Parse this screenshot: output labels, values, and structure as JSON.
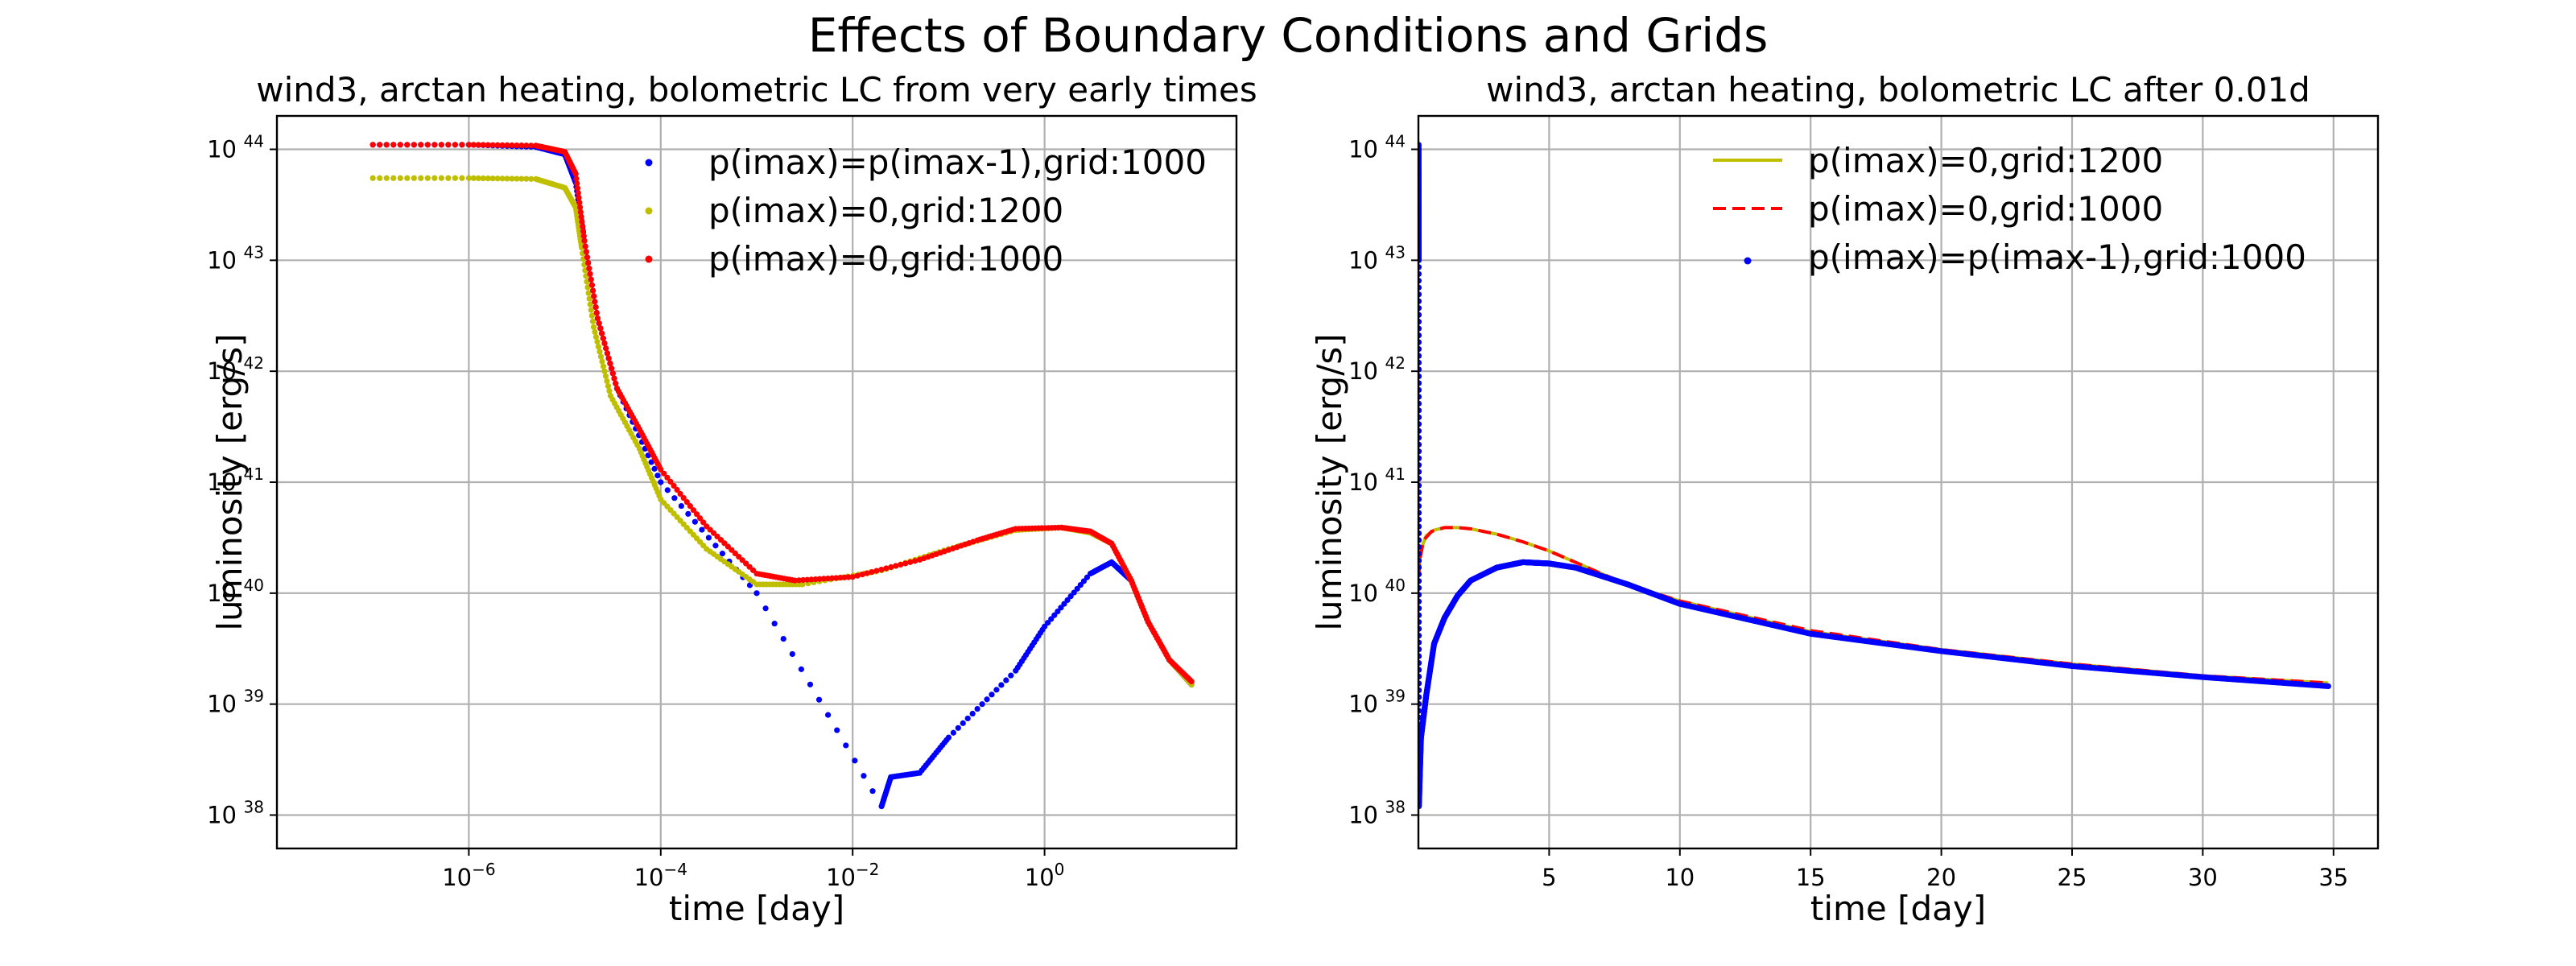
{
  "figure": {
    "title": "Effects of Boundary Conditions and Grids"
  },
  "colors": {
    "blue": "#0000ff",
    "yellow": "#bfbf00",
    "red": "#ff0000",
    "grid": "#b0b0b0"
  },
  "chart_data": [
    {
      "type": "scatter",
      "title": "wind3, arctan heating, bolometric LC from very early times",
      "xlabel": "time [day]",
      "ylabel": "luminosity [erg/s]",
      "xscale": "log",
      "yscale": "log",
      "xlim": [
        1e-08,
        100
      ],
      "ylim": [
        5e+37,
        2e+44
      ],
      "xticks": [
        {
          "value": 1e-06,
          "base": "10",
          "exp": "−6"
        },
        {
          "value": 0.0001,
          "base": "10",
          "exp": "−4"
        },
        {
          "value": 0.01,
          "base": "10",
          "exp": "−2"
        },
        {
          "value": 1,
          "base": "10",
          "exp": "0"
        }
      ],
      "yticks": [
        {
          "value": 1e+38,
          "base": "10",
          "exp": "38"
        },
        {
          "value": 1e+39,
          "base": "10",
          "exp": "39"
        },
        {
          "value": 1e+40,
          "base": "10",
          "exp": "40"
        },
        {
          "value": 1e+41,
          "base": "10",
          "exp": "41"
        },
        {
          "value": 1e+42,
          "base": "10",
          "exp": "42"
        },
        {
          "value": 1e+43,
          "base": "10",
          "exp": "43"
        },
        {
          "value": 1e+44,
          "base": "10",
          "exp": "44"
        }
      ],
      "grid": true,
      "legend_position": "top-right",
      "series": [
        {
          "name": "p(imax)=p(imax-1),grid:1000",
          "color": "blue",
          "marker": "dot",
          "points": [
            [
              1e-07,
              1.1e+44
            ],
            [
              1e-06,
              1.1e+44
            ],
            [
              5e-06,
              1.05e+44
            ],
            [
              1e-05,
              9e+43
            ],
            [
              1.3e-05,
              5e+43
            ],
            [
              1.6e-05,
              1.5e+43
            ],
            [
              2.2e-05,
              3e+42
            ],
            [
              3.5e-05,
              7e+41
            ],
            [
              0.0001,
              1e+41
            ],
            [
              0.001,
              1e+40
            ],
            [
              0.02,
              1.2e+38
            ],
            [
              0.025,
              2.2e+38
            ],
            [
              0.05,
              2.4e+38
            ],
            [
              0.1,
              5e+38
            ],
            [
              0.5,
              2e+39
            ],
            [
              1,
              5e+39
            ],
            [
              3,
              1.5e+40
            ],
            [
              5,
              1.9e+40
            ],
            [
              8,
              1.3e+40
            ],
            [
              12,
              5.5e+39
            ],
            [
              20,
              2.5e+39
            ],
            [
              34,
              1.5e+39
            ]
          ]
        },
        {
          "name": "p(imax)=0,grid:1200",
          "color": "yellow",
          "marker": "dot",
          "points": [
            [
              1e-07,
              5.5e+43
            ],
            [
              1e-06,
              5.5e+43
            ],
            [
              5e-06,
              5.4e+43
            ],
            [
              1e-05,
              4.5e+43
            ],
            [
              1.3e-05,
              3e+43
            ],
            [
              1.5e-05,
              1.3e+43
            ],
            [
              2e-05,
              2.5e+42
            ],
            [
              3e-05,
              6e+41
            ],
            [
              6e-05,
              2e+41
            ],
            [
              0.0001,
              7e+40
            ],
            [
              0.0003,
              2.5e+40
            ],
            [
              0.001,
              1.2e+40
            ],
            [
              0.003,
              1.2e+40
            ],
            [
              0.02,
              1.6e+40
            ],
            [
              0.1,
              2.5e+40
            ],
            [
              0.5,
              3.7e+40
            ],
            [
              1.5,
              3.9e+40
            ],
            [
              3,
              3.5e+40
            ],
            [
              5,
              2.8e+40
            ],
            [
              8,
              1.3e+40
            ],
            [
              12,
              5.5e+39
            ],
            [
              20,
              2.5e+39
            ],
            [
              34,
              1.5e+39
            ]
          ]
        },
        {
          "name": "p(imax)=0,grid:1000",
          "color": "red",
          "marker": "dot",
          "points": [
            [
              1e-07,
              1.1e+44
            ],
            [
              1e-06,
              1.1e+44
            ],
            [
              5e-06,
              1.08e+44
            ],
            [
              1e-05,
              9.5e+43
            ],
            [
              1.3e-05,
              6e+43
            ],
            [
              1.6e-05,
              1.5e+43
            ],
            [
              2.2e-05,
              3e+42
            ],
            [
              3.5e-05,
              7e+41
            ],
            [
              6e-05,
              3e+41
            ],
            [
              0.0001,
              1.3e+41
            ],
            [
              0.0003,
              4e+40
            ],
            [
              0.001,
              1.5e+40
            ],
            [
              0.0025,
              1.3e+40
            ],
            [
              0.01,
              1.4e+40
            ],
            [
              0.05,
              2e+40
            ],
            [
              0.2,
              3e+40
            ],
            [
              0.5,
              3.8e+40
            ],
            [
              1.5,
              3.9e+40
            ],
            [
              3,
              3.6e+40
            ],
            [
              5,
              2.8e+40
            ],
            [
              8,
              1.3e+40
            ],
            [
              12,
              5.5e+39
            ],
            [
              20,
              2.5e+39
            ],
            [
              34,
              1.6e+39
            ]
          ]
        }
      ]
    },
    {
      "type": "line",
      "title": "wind3, arctan heating, bolometric LC after 0.01d",
      "xlabel": "time [day]",
      "ylabel": "luminosity [erg/s]",
      "xscale": "linear",
      "yscale": "log",
      "xlim": [
        0,
        36.7
      ],
      "ylim": [
        5e+37,
        2e+44
      ],
      "xticks": [
        {
          "value": 5,
          "label": "5"
        },
        {
          "value": 10,
          "label": "10"
        },
        {
          "value": 15,
          "label": "15"
        },
        {
          "value": 20,
          "label": "20"
        },
        {
          "value": 25,
          "label": "25"
        },
        {
          "value": 30,
          "label": "30"
        },
        {
          "value": 35,
          "label": "35"
        }
      ],
      "yticks": [
        {
          "value": 1e+38,
          "base": "10",
          "exp": "38"
        },
        {
          "value": 1e+39,
          "base": "10",
          "exp": "39"
        },
        {
          "value": 1e+40,
          "base": "10",
          "exp": "40"
        },
        {
          "value": 1e+41,
          "base": "10",
          "exp": "41"
        },
        {
          "value": 1e+42,
          "base": "10",
          "exp": "42"
        },
        {
          "value": 1e+43,
          "base": "10",
          "exp": "43"
        },
        {
          "value": 1e+44,
          "base": "10",
          "exp": "44"
        }
      ],
      "grid": true,
      "legend_position": "top-right",
      "series": [
        {
          "name": "p(imax)=0,grid:1200",
          "color": "yellow",
          "style": "solid",
          "points": [
            [
              0.02,
              1.6e+40
            ],
            [
              0.1,
              2.5e+40
            ],
            [
              0.3,
              3.3e+40
            ],
            [
              0.6,
              3.7e+40
            ],
            [
              1,
              3.9e+40
            ],
            [
              1.5,
              3.9e+40
            ],
            [
              2,
              3.8e+40
            ],
            [
              3,
              3.4e+40
            ],
            [
              4,
              2.9e+40
            ],
            [
              5,
              2.4e+40
            ],
            [
              6,
              1.9e+40
            ],
            [
              7,
              1.5e+40
            ],
            [
              8,
              1.2e+40
            ],
            [
              10,
              8.5e+39
            ],
            [
              15,
              4.5e+39
            ],
            [
              20,
              3.1e+39
            ],
            [
              25,
              2.3e+39
            ],
            [
              30,
              1.8e+39
            ],
            [
              34.8,
              1.55e+39
            ]
          ]
        },
        {
          "name": "p(imax)=0,grid:1000",
          "color": "red",
          "style": "dashed",
          "points": [
            [
              0.01,
              1.4e+40
            ],
            [
              0.05,
              2e+40
            ],
            [
              0.2,
              3e+40
            ],
            [
              0.5,
              3.6e+40
            ],
            [
              1,
              3.9e+40
            ],
            [
              1.5,
              3.9e+40
            ],
            [
              2,
              3.8e+40
            ],
            [
              3,
              3.4e+40
            ],
            [
              4,
              2.9e+40
            ],
            [
              5,
              2.4e+40
            ],
            [
              6,
              1.9e+40
            ],
            [
              7,
              1.5e+40
            ],
            [
              8,
              1.2e+40
            ],
            [
              10,
              8.5e+39
            ],
            [
              15,
              4.6e+39
            ],
            [
              20,
              3.1e+39
            ],
            [
              25,
              2.3e+39
            ],
            [
              30,
              1.8e+39
            ],
            [
              34.8,
              1.55e+39
            ]
          ]
        },
        {
          "name": "p(imax)=p(imax-1),grid:1000",
          "color": "blue",
          "style": "dots",
          "points": [
            [
              0.01,
              1.1e+44
            ],
            [
              0.015,
              1e+43
            ],
            [
              0.02,
              1.2e+38
            ],
            [
              0.1,
              5e+38
            ],
            [
              0.3,
              1.2e+39
            ],
            [
              0.6,
              3.5e+39
            ],
            [
              1,
              6e+39
            ],
            [
              1.5,
              9.5e+39
            ],
            [
              2,
              1.3e+40
            ],
            [
              3,
              1.7e+40
            ],
            [
              4,
              1.9e+40
            ],
            [
              5,
              1.85e+40
            ],
            [
              6,
              1.7e+40
            ],
            [
              8,
              1.2e+40
            ],
            [
              10,
              8e+39
            ],
            [
              15,
              4.3e+39
            ],
            [
              20,
              3e+39
            ],
            [
              25,
              2.2e+39
            ],
            [
              30,
              1.75e+39
            ],
            [
              34.8,
              1.45e+39
            ]
          ]
        }
      ]
    }
  ]
}
